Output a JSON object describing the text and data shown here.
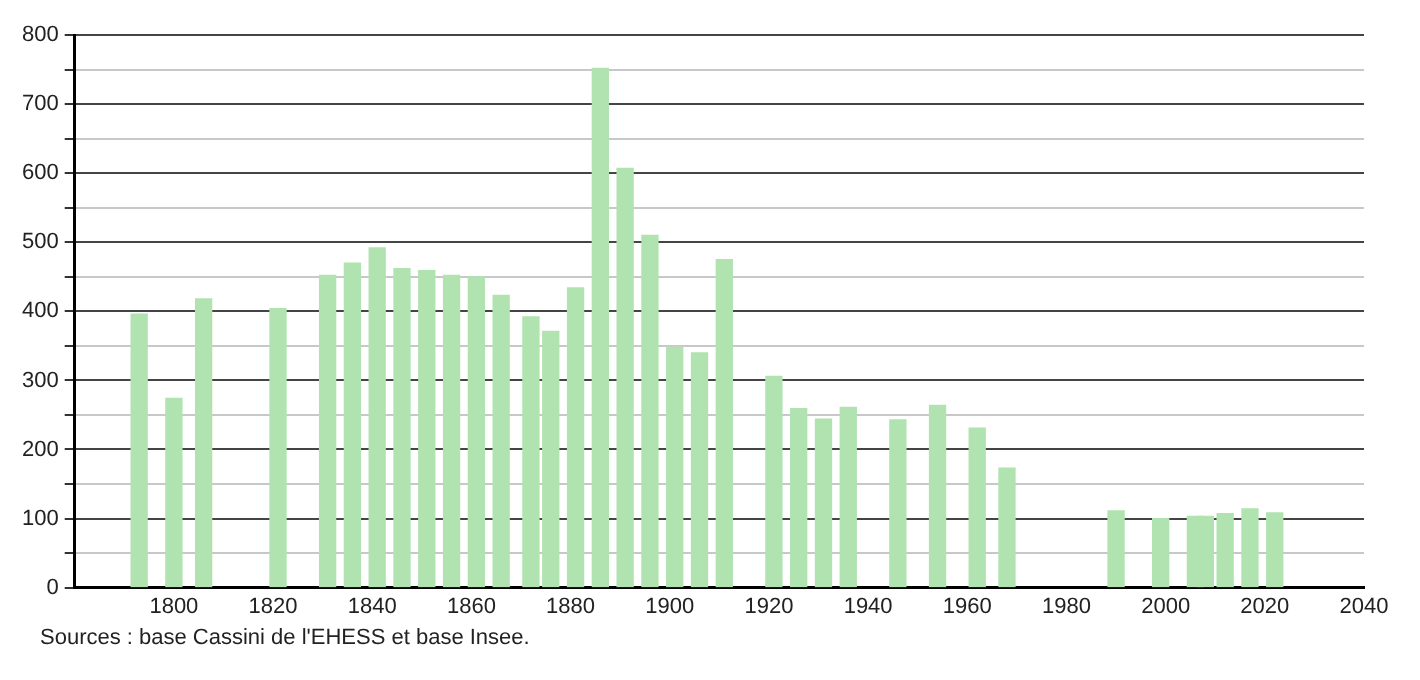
{
  "chart_data": {
    "type": "bar",
    "x": [
      1793,
      1800,
      1806,
      1821,
      1831,
      1836,
      1841,
      1846,
      1851,
      1856,
      1861,
      1866,
      1872,
      1876,
      1881,
      1886,
      1891,
      1896,
      1901,
      1906,
      1911,
      1921,
      1926,
      1931,
      1936,
      1946,
      1954,
      1962,
      1968,
      1990,
      1999,
      2006,
      2008,
      2012,
      2017,
      2022
    ],
    "values": [
      396,
      274,
      418,
      404,
      452,
      470,
      492,
      462,
      459,
      452,
      450,
      423,
      392,
      371,
      434,
      752,
      607,
      510,
      348,
      340,
      475,
      306,
      259,
      244,
      261,
      243,
      264,
      231,
      173,
      111,
      100,
      103,
      103,
      107,
      114,
      108
    ],
    "color": "#b0e3b0",
    "xlim": [
      1780,
      2040
    ],
    "xticks": [
      1800,
      1820,
      1840,
      1860,
      1880,
      1900,
      1920,
      1940,
      1960,
      1980,
      2000,
      2020,
      2040
    ],
    "ylim": [
      0,
      800
    ],
    "yticks": [
      0,
      {
        "value": 50,
        "label": null
      },
      100,
      {
        "value": 150,
        "label": null
      },
      200,
      {
        "value": 250,
        "label": null
      },
      300,
      {
        "value": 350,
        "label": null
      },
      400,
      {
        "value": 450,
        "label": null
      },
      500,
      {
        "value": 550,
        "label": null
      },
      600,
      {
        "value": 650,
        "label": null
      },
      700,
      {
        "value": 750,
        "label": null
      },
      800
    ],
    "grid": "y",
    "legend": false,
    "annotations": [
      "Sources : base Cassini de l'EHESS et base Insee."
    ]
  }
}
